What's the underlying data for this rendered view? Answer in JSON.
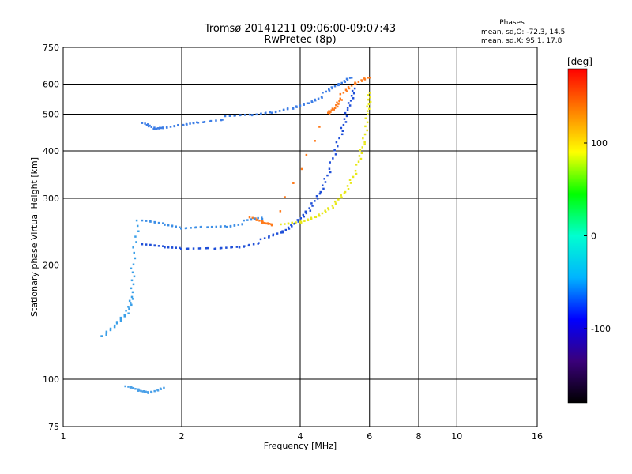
{
  "chart_data": {
    "type": "scatter",
    "title": "Tromsø 20141211 09:06:00-09:07:43",
    "subtitle": "RwPretec (8p)",
    "phase_info": {
      "heading": "Phases",
      "line_o": "mean, sd,O: -72.3, 14.5",
      "line_x": "mean, sd,X:  95.1, 17.8"
    },
    "xlabel": "Frequency [MHz]",
    "ylabel": "Stationary phase Virtual Height [km]",
    "x_scale": "log",
    "y_scale": "log",
    "xlim": [
      1,
      16
    ],
    "ylim": [
      75,
      750
    ],
    "x_ticks": [
      1,
      2,
      4,
      6,
      8,
      10,
      16
    ],
    "y_ticks": [
      75,
      100,
      200,
      300,
      400,
      500,
      600,
      750
    ],
    "grid": true,
    "colorbar": {
      "label": "[deg]",
      "range": [
        -180,
        180
      ],
      "ticks": [
        100,
        0,
        -100
      ],
      "colors": [
        "#000000",
        "#3a007a",
        "#0000ff",
        "#00b4ff",
        "#00ffd0",
        "#00ff00",
        "#ffff00",
        "#ff8000",
        "#ff0000"
      ]
    },
    "series": [
      {
        "color": "#3c7de6",
        "points": [
          [
            1.6,
            470
          ],
          [
            1.7,
            455
          ],
          [
            1.8,
            460
          ],
          [
            2.0,
            470
          ],
          [
            2.2,
            480
          ],
          [
            2.6,
            490
          ],
          [
            3.0,
            495
          ],
          [
            3.4,
            505
          ],
          [
            3.8,
            520
          ],
          [
            4.2,
            540
          ],
          [
            4.6,
            565
          ],
          [
            5.0,
            595
          ],
          [
            5.4,
            625
          ]
        ]
      },
      {
        "color": "#1f4fd8",
        "points": [
          [
            1.6,
            225
          ],
          [
            1.8,
            222
          ],
          [
            2.0,
            221
          ],
          [
            2.4,
            222
          ],
          [
            2.8,
            225
          ],
          [
            3.2,
            232
          ],
          [
            3.6,
            243
          ],
          [
            3.9,
            258
          ],
          [
            4.2,
            280
          ],
          [
            4.5,
            315
          ],
          [
            4.8,
            370
          ],
          [
            5.1,
            450
          ],
          [
            5.3,
            520
          ],
          [
            5.5,
            585
          ]
        ]
      },
      {
        "color": "#e8e81a",
        "points": [
          [
            3.6,
            254
          ],
          [
            4.0,
            258
          ],
          [
            4.4,
            268
          ],
          [
            4.8,
            285
          ],
          [
            5.2,
            315
          ],
          [
            5.6,
            365
          ],
          [
            5.8,
            420
          ],
          [
            5.95,
            510
          ],
          [
            6.0,
            570
          ]
        ]
      },
      {
        "color": "#ff7a1a",
        "points": [
          [
            3.0,
            265
          ],
          [
            3.2,
            258
          ],
          [
            3.4,
            255
          ],
          [
            4.7,
            505
          ],
          [
            4.9,
            525
          ],
          [
            5.1,
            560
          ],
          [
            5.5,
            600
          ],
          [
            6.0,
            625
          ]
        ]
      },
      {
        "color": "#3c8ee6",
        "points": [
          [
            1.6,
            260
          ],
          [
            1.8,
            255
          ],
          [
            2.0,
            250
          ],
          [
            2.3,
            253
          ],
          [
            2.6,
            255
          ],
          [
            2.9,
            260
          ],
          [
            3.2,
            265
          ]
        ]
      },
      {
        "color": "#3a9fe8",
        "points": [
          [
            1.55,
            260
          ],
          [
            1.5,
            200
          ],
          [
            1.5,
            165
          ],
          [
            1.45,
            150
          ],
          [
            1.35,
            140
          ],
          [
            1.25,
            130
          ]
        ]
      },
      {
        "color": "#4aa0e8",
        "points": [
          [
            1.45,
            95
          ],
          [
            1.55,
            93
          ],
          [
            1.65,
            92
          ],
          [
            1.8,
            95
          ]
        ]
      }
    ],
    "annotations": []
  }
}
